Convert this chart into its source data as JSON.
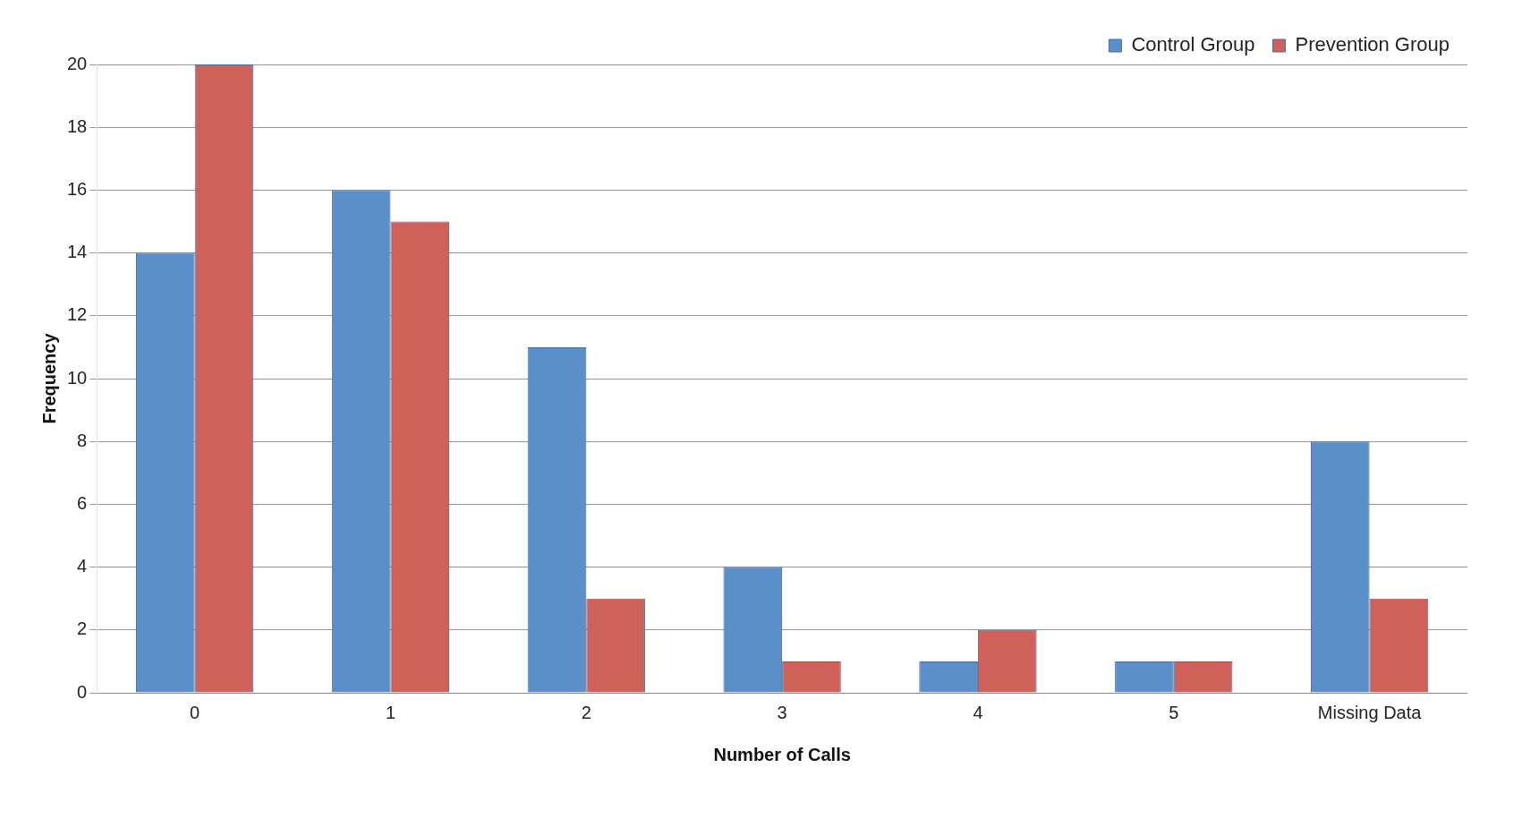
{
  "chart_data": {
    "type": "bar",
    "xlabel": "Number of Calls",
    "ylabel": "Frequency",
    "categories": [
      "0",
      "1",
      "2",
      "3",
      "4",
      "5",
      "Missing Data"
    ],
    "series": [
      {
        "name": "Control Group",
        "color": "#5b8fc9",
        "values": [
          14,
          16,
          11,
          4,
          1,
          1,
          8
        ]
      },
      {
        "name": "Prevention Group",
        "color": "#d0605a",
        "values": [
          20,
          15,
          3,
          1,
          2,
          1,
          3
        ]
      }
    ],
    "ylim": [
      0,
      20
    ],
    "yticks": [
      0,
      2,
      4,
      6,
      8,
      10,
      12,
      14,
      16,
      18,
      20
    ],
    "grid": "y",
    "legend": "top right"
  }
}
